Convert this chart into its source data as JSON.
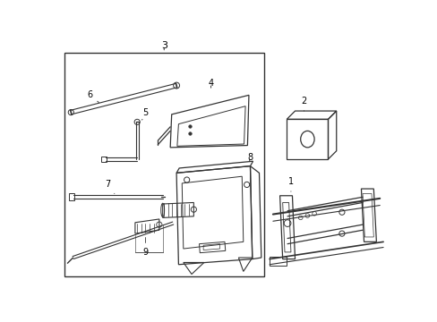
{
  "background": "#ffffff",
  "line_color": "#333333",
  "text_color": "#000000",
  "fig_width": 4.89,
  "fig_height": 3.6,
  "dpi": 100
}
